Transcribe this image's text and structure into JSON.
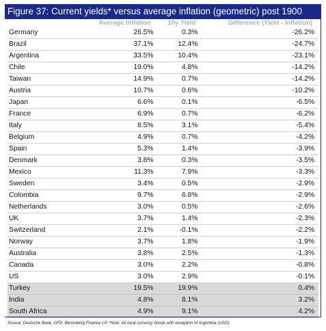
{
  "figure": {
    "title": "Figure 37: Current yields* versus average inflation (geometric) post 1900",
    "accent_color": "#1a2a8c",
    "header_text_color": "#9fb2e0",
    "shaded_row_color": "#d9d9d9",
    "columns": [
      "",
      "Average Inflation",
      "10y Yield",
      "Difference (Yield - Inflation)"
    ],
    "rows": [
      {
        "country": "Germany",
        "avg_inflation": "26.5%",
        "yield_10y": "0.3%",
        "difference": "-26.2%",
        "shaded": false
      },
      {
        "country": "Brazil",
        "avg_inflation": "37.1%",
        "yield_10y": "12.4%",
        "difference": "-24.7%",
        "shaded": false
      },
      {
        "country": "Argentina",
        "avg_inflation": "33.5%",
        "yield_10y": "10.4%",
        "difference": "-23.1%",
        "shaded": false
      },
      {
        "country": "Chile",
        "avg_inflation": "19.0%",
        "yield_10y": "4.8%",
        "difference": "-14.2%",
        "shaded": false
      },
      {
        "country": "Taiwan",
        "avg_inflation": "14.9%",
        "yield_10y": "0.7%",
        "difference": "-14.2%",
        "shaded": false
      },
      {
        "country": "Austria",
        "avg_inflation": "10.7%",
        "yield_10y": "0.6%",
        "difference": "-10.2%",
        "shaded": false
      },
      {
        "country": "Japan",
        "avg_inflation": "6.6%",
        "yield_10y": "0.1%",
        "difference": "-6.5%",
        "shaded": false
      },
      {
        "country": "France",
        "avg_inflation": "6.9%",
        "yield_10y": "0.7%",
        "difference": "-6.2%",
        "shaded": false
      },
      {
        "country": "Italy",
        "avg_inflation": "8.5%",
        "yield_10y": "3.1%",
        "difference": "-5.4%",
        "shaded": false
      },
      {
        "country": "Belgium",
        "avg_inflation": "4.9%",
        "yield_10y": "0.7%",
        "difference": "-4.2%",
        "shaded": false
      },
      {
        "country": "Spain",
        "avg_inflation": "5.3%",
        "yield_10y": "1.4%",
        "difference": "-3.9%",
        "shaded": false
      },
      {
        "country": "Denmark",
        "avg_inflation": "3.8%",
        "yield_10y": "0.3%",
        "difference": "-3.5%",
        "shaded": false
      },
      {
        "country": "Mexico",
        "avg_inflation": "11.3%",
        "yield_10y": "7.9%",
        "difference": "-3.3%",
        "shaded": false
      },
      {
        "country": "Sweden",
        "avg_inflation": "3.4%",
        "yield_10y": "0.5%",
        "difference": "-2.9%",
        "shaded": false
      },
      {
        "country": "Colombia",
        "avg_inflation": "9.7%",
        "yield_10y": "6.8%",
        "difference": "-2.9%",
        "shaded": false
      },
      {
        "country": "Netherlands",
        "avg_inflation": "3.0%",
        "yield_10y": "0.5%",
        "difference": "-2.6%",
        "shaded": false
      },
      {
        "country": "UK",
        "avg_inflation": "3.7%",
        "yield_10y": "1.4%",
        "difference": "-2.3%",
        "shaded": false
      },
      {
        "country": "Switzerland",
        "avg_inflation": "2.1%",
        "yield_10y": "-0.1%",
        "difference": "-2.2%",
        "shaded": false
      },
      {
        "country": "Norway",
        "avg_inflation": "3.7%",
        "yield_10y": "1.8%",
        "difference": "-1.9%",
        "shaded": false
      },
      {
        "country": "Australia",
        "avg_inflation": "3.8%",
        "yield_10y": "2.5%",
        "difference": "-1.3%",
        "shaded": false
      },
      {
        "country": "Canada",
        "avg_inflation": "3.0%",
        "yield_10y": "2.2%",
        "difference": "-0.8%",
        "shaded": false
      },
      {
        "country": "US",
        "avg_inflation": "3.0%",
        "yield_10y": "2.9%",
        "difference": "-0.1%",
        "shaded": false
      },
      {
        "country": "Turkey",
        "avg_inflation": "19.5%",
        "yield_10y": "19.9%",
        "difference": "0.4%",
        "shaded": true
      },
      {
        "country": "India",
        "avg_inflation": "4.8%",
        "yield_10y": "8.1%",
        "difference": "3.2%",
        "shaded": true
      },
      {
        "country": "South Africa",
        "avg_inflation": "4.9%",
        "yield_10y": "9.1%",
        "difference": "4.2%",
        "shaded": true
      }
    ],
    "source": "Source: Deutsche Bank, GFD, Bloomberg Finance LP. *Note: All local currency bonds with exception of Argentina (USD)."
  }
}
